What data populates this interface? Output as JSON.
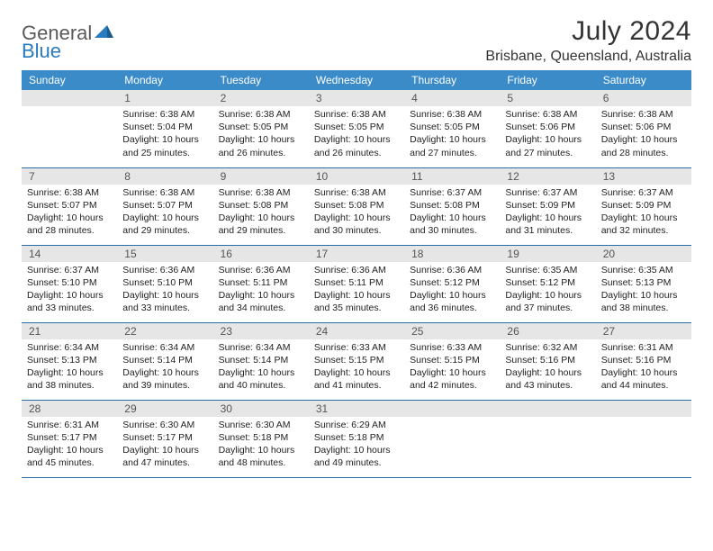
{
  "logo": {
    "part1": "General",
    "part2": "Blue"
  },
  "header": {
    "title": "July 2024",
    "location": "Brisbane, Queensland, Australia"
  },
  "dayNames": [
    "Sunday",
    "Monday",
    "Tuesday",
    "Wednesday",
    "Thursday",
    "Friday",
    "Saturday"
  ],
  "colors": {
    "headerBg": "#3b8bc9",
    "headerText": "#ffffff",
    "dayNumBg": "#e6e6e6",
    "borderColor": "#2a6ea8",
    "logoGray": "#5a5a5a",
    "logoBlue": "#2a7bbd"
  },
  "weeks": [
    [
      {
        "num": "",
        "lines": []
      },
      {
        "num": "1",
        "lines": [
          "Sunrise: 6:38 AM",
          "Sunset: 5:04 PM",
          "Daylight: 10 hours",
          "and 25 minutes."
        ]
      },
      {
        "num": "2",
        "lines": [
          "Sunrise: 6:38 AM",
          "Sunset: 5:05 PM",
          "Daylight: 10 hours",
          "and 26 minutes."
        ]
      },
      {
        "num": "3",
        "lines": [
          "Sunrise: 6:38 AM",
          "Sunset: 5:05 PM",
          "Daylight: 10 hours",
          "and 26 minutes."
        ]
      },
      {
        "num": "4",
        "lines": [
          "Sunrise: 6:38 AM",
          "Sunset: 5:05 PM",
          "Daylight: 10 hours",
          "and 27 minutes."
        ]
      },
      {
        "num": "5",
        "lines": [
          "Sunrise: 6:38 AM",
          "Sunset: 5:06 PM",
          "Daylight: 10 hours",
          "and 27 minutes."
        ]
      },
      {
        "num": "6",
        "lines": [
          "Sunrise: 6:38 AM",
          "Sunset: 5:06 PM",
          "Daylight: 10 hours",
          "and 28 minutes."
        ]
      }
    ],
    [
      {
        "num": "7",
        "lines": [
          "Sunrise: 6:38 AM",
          "Sunset: 5:07 PM",
          "Daylight: 10 hours",
          "and 28 minutes."
        ]
      },
      {
        "num": "8",
        "lines": [
          "Sunrise: 6:38 AM",
          "Sunset: 5:07 PM",
          "Daylight: 10 hours",
          "and 29 minutes."
        ]
      },
      {
        "num": "9",
        "lines": [
          "Sunrise: 6:38 AM",
          "Sunset: 5:08 PM",
          "Daylight: 10 hours",
          "and 29 minutes."
        ]
      },
      {
        "num": "10",
        "lines": [
          "Sunrise: 6:38 AM",
          "Sunset: 5:08 PM",
          "Daylight: 10 hours",
          "and 30 minutes."
        ]
      },
      {
        "num": "11",
        "lines": [
          "Sunrise: 6:37 AM",
          "Sunset: 5:08 PM",
          "Daylight: 10 hours",
          "and 30 minutes."
        ]
      },
      {
        "num": "12",
        "lines": [
          "Sunrise: 6:37 AM",
          "Sunset: 5:09 PM",
          "Daylight: 10 hours",
          "and 31 minutes."
        ]
      },
      {
        "num": "13",
        "lines": [
          "Sunrise: 6:37 AM",
          "Sunset: 5:09 PM",
          "Daylight: 10 hours",
          "and 32 minutes."
        ]
      }
    ],
    [
      {
        "num": "14",
        "lines": [
          "Sunrise: 6:37 AM",
          "Sunset: 5:10 PM",
          "Daylight: 10 hours",
          "and 33 minutes."
        ]
      },
      {
        "num": "15",
        "lines": [
          "Sunrise: 6:36 AM",
          "Sunset: 5:10 PM",
          "Daylight: 10 hours",
          "and 33 minutes."
        ]
      },
      {
        "num": "16",
        "lines": [
          "Sunrise: 6:36 AM",
          "Sunset: 5:11 PM",
          "Daylight: 10 hours",
          "and 34 minutes."
        ]
      },
      {
        "num": "17",
        "lines": [
          "Sunrise: 6:36 AM",
          "Sunset: 5:11 PM",
          "Daylight: 10 hours",
          "and 35 minutes."
        ]
      },
      {
        "num": "18",
        "lines": [
          "Sunrise: 6:36 AM",
          "Sunset: 5:12 PM",
          "Daylight: 10 hours",
          "and 36 minutes."
        ]
      },
      {
        "num": "19",
        "lines": [
          "Sunrise: 6:35 AM",
          "Sunset: 5:12 PM",
          "Daylight: 10 hours",
          "and 37 minutes."
        ]
      },
      {
        "num": "20",
        "lines": [
          "Sunrise: 6:35 AM",
          "Sunset: 5:13 PM",
          "Daylight: 10 hours",
          "and 38 minutes."
        ]
      }
    ],
    [
      {
        "num": "21",
        "lines": [
          "Sunrise: 6:34 AM",
          "Sunset: 5:13 PM",
          "Daylight: 10 hours",
          "and 38 minutes."
        ]
      },
      {
        "num": "22",
        "lines": [
          "Sunrise: 6:34 AM",
          "Sunset: 5:14 PM",
          "Daylight: 10 hours",
          "and 39 minutes."
        ]
      },
      {
        "num": "23",
        "lines": [
          "Sunrise: 6:34 AM",
          "Sunset: 5:14 PM",
          "Daylight: 10 hours",
          "and 40 minutes."
        ]
      },
      {
        "num": "24",
        "lines": [
          "Sunrise: 6:33 AM",
          "Sunset: 5:15 PM",
          "Daylight: 10 hours",
          "and 41 minutes."
        ]
      },
      {
        "num": "25",
        "lines": [
          "Sunrise: 6:33 AM",
          "Sunset: 5:15 PM",
          "Daylight: 10 hours",
          "and 42 minutes."
        ]
      },
      {
        "num": "26",
        "lines": [
          "Sunrise: 6:32 AM",
          "Sunset: 5:16 PM",
          "Daylight: 10 hours",
          "and 43 minutes."
        ]
      },
      {
        "num": "27",
        "lines": [
          "Sunrise: 6:31 AM",
          "Sunset: 5:16 PM",
          "Daylight: 10 hours",
          "and 44 minutes."
        ]
      }
    ],
    [
      {
        "num": "28",
        "lines": [
          "Sunrise: 6:31 AM",
          "Sunset: 5:17 PM",
          "Daylight: 10 hours",
          "and 45 minutes."
        ]
      },
      {
        "num": "29",
        "lines": [
          "Sunrise: 6:30 AM",
          "Sunset: 5:17 PM",
          "Daylight: 10 hours",
          "and 47 minutes."
        ]
      },
      {
        "num": "30",
        "lines": [
          "Sunrise: 6:30 AM",
          "Sunset: 5:18 PM",
          "Daylight: 10 hours",
          "and 48 minutes."
        ]
      },
      {
        "num": "31",
        "lines": [
          "Sunrise: 6:29 AM",
          "Sunset: 5:18 PM",
          "Daylight: 10 hours",
          "and 49 minutes."
        ]
      },
      {
        "num": "",
        "lines": []
      },
      {
        "num": "",
        "lines": []
      },
      {
        "num": "",
        "lines": []
      }
    ]
  ]
}
